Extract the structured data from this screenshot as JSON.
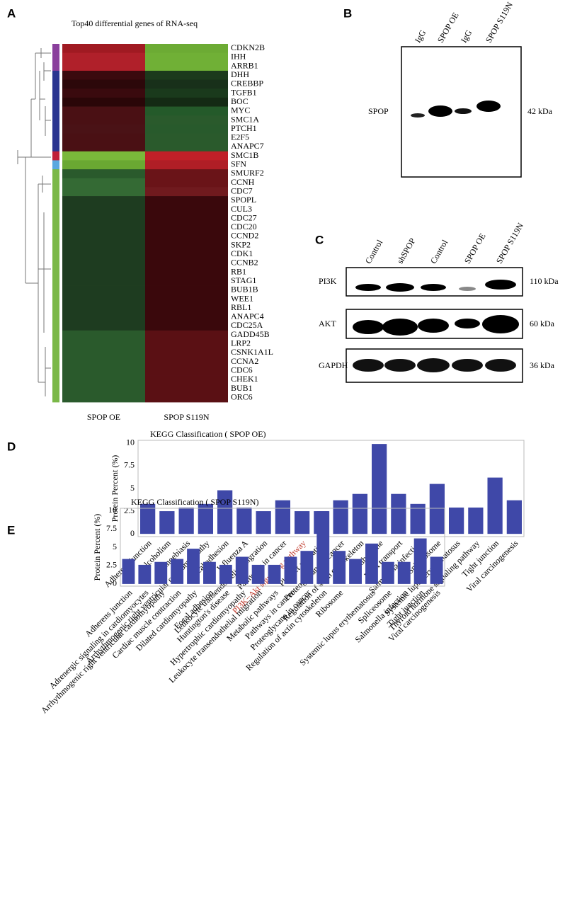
{
  "panels": {
    "A": "A",
    "B": "B",
    "C": "C",
    "D": "D",
    "E": "E"
  },
  "heatmap": {
    "title": "Top40 differential genes of RNA-seq",
    "columns": [
      "SPOP OE",
      "SPOP S119N"
    ],
    "rows": [
      {
        "gene": "CDKN2B",
        "side": "#8a3f9c",
        "cells": [
          "#a01a22",
          "#6cab34"
        ]
      },
      {
        "gene": "IHH",
        "side": "#8a3f9c",
        "cells": [
          "#b0202a",
          "#70b036"
        ]
      },
      {
        "gene": "ARRB1",
        "side": "#8a3f9c",
        "cells": [
          "#b0202a",
          "#70b036"
        ]
      },
      {
        "gene": "DHH",
        "side": "#2a3590",
        "cells": [
          "#3a0a0e",
          "#1c3a1c"
        ]
      },
      {
        "gene": "CREBBP",
        "side": "#2a3590",
        "cells": [
          "#2c080a",
          "#18301a"
        ]
      },
      {
        "gene": "TGFB1",
        "side": "#2a3590",
        "cells": [
          "#3a0a0e",
          "#1a3a1c"
        ]
      },
      {
        "gene": "BOC",
        "side": "#2a3590",
        "cells": [
          "#2a0608",
          "#142a14"
        ]
      },
      {
        "gene": "MYC",
        "side": "#2a3590",
        "cells": [
          "#4a1014",
          "#245a2a"
        ]
      },
      {
        "gene": "SMC1A",
        "side": "#2a3590",
        "cells": [
          "#4a1014",
          "#2a5a2c"
        ]
      },
      {
        "gene": "PTCH1",
        "side": "#2a3590",
        "cells": [
          "#4a1216",
          "#285a2c"
        ]
      },
      {
        "gene": "E2F5",
        "side": "#2a3590",
        "cells": [
          "#4a1014",
          "#2a5a2c"
        ]
      },
      {
        "gene": "ANAPC7",
        "side": "#2a3590",
        "cells": [
          "#4a1014",
          "#2a5a2c"
        ]
      },
      {
        "gene": "SMC1B",
        "side": "#c0203a",
        "cells": [
          "#7ab83a",
          "#c02028"
        ]
      },
      {
        "gene": "SFN",
        "side": "#5aa8e0",
        "cells": [
          "#6aa832",
          "#b01e26"
        ]
      },
      {
        "gene": "SMURF2",
        "side": "#7ab848",
        "cells": [
          "#2a5a2c",
          "#6a1418"
        ]
      },
      {
        "gene": "CCNH",
        "side": "#7ab848",
        "cells": [
          "#346a34",
          "#6a1418"
        ]
      },
      {
        "gene": "CDC7",
        "side": "#7ab848",
        "cells": [
          "#346a34",
          "#701a1e"
        ]
      },
      {
        "gene": "SPOPL",
        "side": "#7ab848",
        "cells": [
          "#1e3c20",
          "#3a080c"
        ]
      },
      {
        "gene": "CUL3",
        "side": "#7ab848",
        "cells": [
          "#1e3c20",
          "#3a080c"
        ]
      },
      {
        "gene": "CDC27",
        "side": "#7ab848",
        "cells": [
          "#1e3c20",
          "#3a080c"
        ]
      },
      {
        "gene": "CDC20",
        "side": "#7ab848",
        "cells": [
          "#1e3c20",
          "#3a080c"
        ]
      },
      {
        "gene": "CCND2",
        "side": "#7ab848",
        "cells": [
          "#1e3c20",
          "#3a080c"
        ]
      },
      {
        "gene": "SKP2",
        "side": "#7ab848",
        "cells": [
          "#1e3c20",
          "#3a080c"
        ]
      },
      {
        "gene": "CDK1",
        "side": "#7ab848",
        "cells": [
          "#1e3c20",
          "#3a080c"
        ]
      },
      {
        "gene": "CCNB2",
        "side": "#7ab848",
        "cells": [
          "#1e3c20",
          "#3a080c"
        ]
      },
      {
        "gene": "RB1",
        "side": "#7ab848",
        "cells": [
          "#1e3c20",
          "#3a080c"
        ]
      },
      {
        "gene": "STAG1",
        "side": "#7ab848",
        "cells": [
          "#1e3c20",
          "#3a080c"
        ]
      },
      {
        "gene": "BUB1B",
        "side": "#7ab848",
        "cells": [
          "#1e3c20",
          "#3a080c"
        ]
      },
      {
        "gene": "WEE1",
        "side": "#7ab848",
        "cells": [
          "#1e3c20",
          "#3a080c"
        ]
      },
      {
        "gene": "RBL1",
        "side": "#7ab848",
        "cells": [
          "#1e3c20",
          "#3a080c"
        ]
      },
      {
        "gene": "ANAPC4",
        "side": "#7ab848",
        "cells": [
          "#1e3c20",
          "#3a080c"
        ]
      },
      {
        "gene": "CDC25A",
        "side": "#7ab848",
        "cells": [
          "#1e3c20",
          "#3a080c"
        ]
      },
      {
        "gene": "GADD45B",
        "side": "#7ab848",
        "cells": [
          "#2a5a2c",
          "#5a1014"
        ]
      },
      {
        "gene": "LRP2",
        "side": "#7ab848",
        "cells": [
          "#2a5a2c",
          "#5a1014"
        ]
      },
      {
        "gene": "CSNK1A1L",
        "side": "#7ab848",
        "cells": [
          "#2a5a2c",
          "#5a1014"
        ]
      },
      {
        "gene": "CCNA2",
        "side": "#7ab848",
        "cells": [
          "#2a5a2c",
          "#5a1014"
        ]
      },
      {
        "gene": "CDC6",
        "side": "#7ab848",
        "cells": [
          "#2a5a2c",
          "#5a1014"
        ]
      },
      {
        "gene": "CHEK1",
        "side": "#7ab848",
        "cells": [
          "#2a5a2c",
          "#5a1014"
        ]
      },
      {
        "gene": "BUB1",
        "side": "#7ab848",
        "cells": [
          "#2a5a2c",
          "#5a1014"
        ]
      },
      {
        "gene": "ORC6",
        "side": "#7ab848",
        "cells": [
          "#2a5a2c",
          "#5a1014"
        ]
      }
    ]
  },
  "blot_b": {
    "lanes": [
      "IgG",
      "SPOP OE",
      "IgG",
      "SPOP S119N"
    ],
    "row": "SPOP",
    "size": "42 kDa"
  },
  "blot_c": {
    "lanes": [
      "Control",
      "shSPOP",
      "Control",
      "SPOP OE",
      "SPOP S119N"
    ],
    "rows": [
      {
        "label": "PI3K",
        "size": "110 kDa"
      },
      {
        "label": "AKT",
        "size": "60 kDa"
      },
      {
        "label": "GAPDH",
        "size": "36 kDa"
      }
    ]
  },
  "chart_data": [
    {
      "type": "bar",
      "title": "KEGG Classification ( SPOP OE)",
      "y_label": "Protein Percent (%)",
      "color": "#3f48a8",
      "categories": [
        "Adherens junction",
        "Alcoholism",
        "Amoebiasis",
        "Arrhythmogenic right ventricular cardiomyopathy",
        "Focal adhesion",
        "Influenza A",
        "Leukocyte transendothelial migration",
        "Pathways in cancer",
        "PI3K−Akt signaling pathway",
        "Platelet activation",
        "Proteoglycans in cancer",
        "Regulation of actin cytoskeleton",
        "Ribosome",
        "RNA transport",
        "Salmonella infection",
        "Spliceosome",
        "Systemic lupus erythematosus",
        "Thyroid hormone signaling pathway",
        "Tight junction",
        "Viral carcinogenesis"
      ],
      "values": [
        3.3,
        2.5,
        2.9,
        3.3,
        4.8,
        2.9,
        2.5,
        3.7,
        2.5,
        2.5,
        3.7,
        4.4,
        9.9,
        4.4,
        3.3,
        5.5,
        2.9,
        2.9,
        6.2,
        3.7
      ],
      "highlight": {
        "index": 8,
        "color": "#c0392b"
      },
      "ylim": [
        -0.3,
        10.3
      ],
      "yticks": [
        0,
        2.5,
        5,
        7.5,
        10
      ]
    },
    {
      "type": "bar",
      "title": "KEGG Classification ( SPOP S119N)",
      "y_label": "Protein Percent (%)",
      "color": "#3f48a8",
      "categories": [
        "Adherens junction",
        "Adrenergic signaling in cardiomyocytes",
        "Arrhythmogenic right ventricular cardiomyopathy",
        "Cardiac muscle contraction",
        "Dilated cardiomyopathy",
        "Focal adhesion",
        "Huntington's disease",
        "Hypertrophic cardiomyopathy",
        "Leukocyte transendothelial migration",
        "Metabolic pathways",
        "Pathways in cancer",
        "Proteoglycans in cancer",
        "Regulation of actin cytoskeleton",
        "Ribosome",
        null,
        "Systemic lupus erythematosus",
        "Spliceosome",
        "Salmonella infection",
        "Tight junction",
        "Viral carcinogenesis"
      ],
      "values": [
        3.4,
        2.6,
        3.0,
        3.4,
        4.8,
        3.0,
        2.6,
        3.7,
        2.6,
        2.6,
        3.7,
        4.5,
        9.9,
        4.5,
        3.4,
        5.5,
        3.0,
        3.0,
        6.2,
        3.7
      ],
      "ylim": [
        -0.3,
        10.3
      ],
      "yticks": [
        0,
        2.5,
        5,
        7.5,
        10
      ]
    }
  ]
}
